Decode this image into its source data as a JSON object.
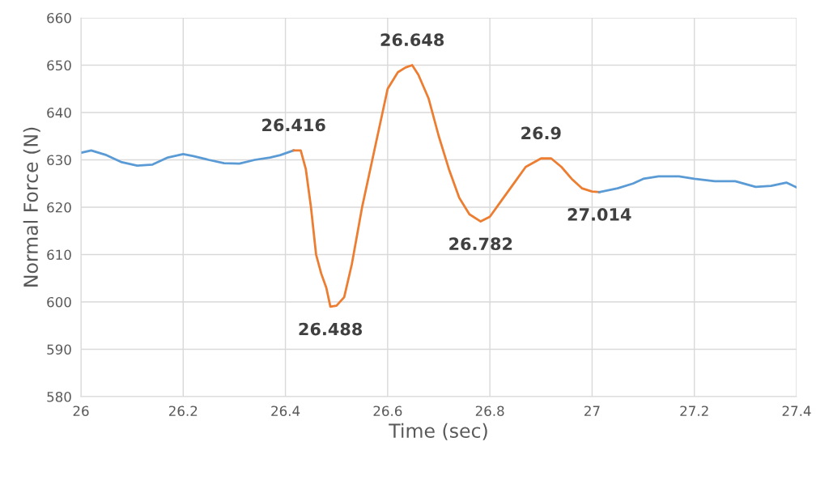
{
  "chart_data": {
    "type": "line",
    "xlabel": "Time (sec)",
    "ylabel": "Normal Force (N)",
    "xlim": [
      26,
      27.4
    ],
    "xticks": [
      26,
      26.2,
      26.4,
      26.6,
      26.8,
      27,
      27.2,
      27.4
    ],
    "ylim": [
      580,
      660
    ],
    "yticks": [
      580,
      590,
      600,
      610,
      620,
      630,
      640,
      650,
      660
    ],
    "grid": true,
    "legend": false,
    "marker": "none",
    "line_style": "solid",
    "series": [
      {
        "color": "#5b9bd5",
        "x": [
          26.0,
          26.02,
          26.05,
          26.08,
          26.11,
          26.14,
          26.17,
          26.2,
          26.22,
          26.25,
          26.28,
          26.31,
          26.34,
          26.37,
          26.39,
          26.416
        ],
        "values": [
          631.5,
          632,
          631,
          629.5,
          628.8,
          629,
          630.5,
          631.2,
          630.8,
          630,
          629.3,
          629.2,
          630,
          630.5,
          631,
          632
        ]
      },
      {
        "color": "#ed7d31",
        "x": [
          26.416,
          26.43,
          26.44,
          26.45,
          26.46,
          26.47,
          26.48,
          26.488,
          26.5,
          26.515,
          26.53,
          26.55,
          26.57,
          26.59,
          26.6,
          26.62,
          26.635,
          26.648,
          26.66,
          26.68,
          26.7,
          26.72,
          26.74,
          26.76,
          26.782,
          26.8,
          26.82,
          26.85,
          26.87,
          26.9,
          26.92,
          26.94,
          26.96,
          26.98,
          27.0,
          27.014
        ],
        "values": [
          632,
          632,
          628,
          620,
          610,
          606,
          603,
          599,
          599.2,
          601,
          608,
          620,
          630,
          640,
          645,
          648.5,
          649.5,
          650,
          648,
          643,
          635,
          628,
          622,
          618.5,
          617,
          618,
          621,
          625.5,
          628.5,
          630.3,
          630.3,
          628.5,
          626,
          624,
          623.3,
          623.2
        ]
      },
      {
        "color": "#5b9bd5",
        "x": [
          27.014,
          27.05,
          27.08,
          27.1,
          27.13,
          27.17,
          27.2,
          27.24,
          27.28,
          27.32,
          27.35,
          27.38,
          27.4
        ],
        "values": [
          623.2,
          624,
          625,
          626,
          626.5,
          626.5,
          626,
          625.5,
          625.5,
          624.3,
          624.5,
          625.2,
          624.2
        ]
      }
    ],
    "annotations": [
      {
        "text": "26.416",
        "x": 26.416,
        "y": 632
      },
      {
        "text": "26.488",
        "x": 26.488,
        "y": 599
      },
      {
        "text": "26.648",
        "x": 26.648,
        "y": 650
      },
      {
        "text": "26.782",
        "x": 26.782,
        "y": 617
      },
      {
        "text": "26.9",
        "x": 26.9,
        "y": 630.3
      },
      {
        "text": "27.014",
        "x": 27.014,
        "y": 623.2
      }
    ]
  }
}
